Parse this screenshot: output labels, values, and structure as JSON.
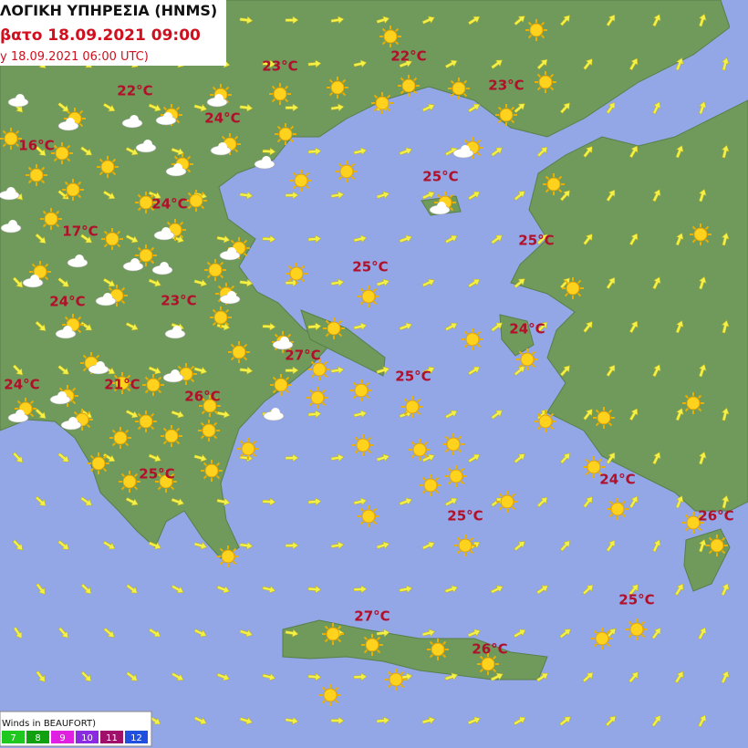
{
  "header": {
    "title": "ΛΟΓΙΚΗ ΥΠΗΡΕΣΙΑ (HNMS)",
    "valid": "βατο 18.09.2021 09:00",
    "issued": "y 18.09.2021 06:00 UTC)"
  },
  "temperatures": [
    "23°C",
    "22°C",
    "22°C",
    "24°C",
    "23°C",
    "16°C",
    "25°C",
    "24°C",
    "17°C",
    "25°C",
    "25°C",
    "24°C",
    "23°C",
    "24°C",
    "27°C",
    "25°C",
    "24°C",
    "21°C",
    "26°C",
    "24°C",
    "25°C",
    "25°C",
    "26°C",
    "25°C",
    "27°C",
    "26°C"
  ],
  "legend": {
    "title": "Winds in BEAUFORT)",
    "scale": [
      7,
      8,
      9,
      10,
      11,
      12
    ]
  }
}
